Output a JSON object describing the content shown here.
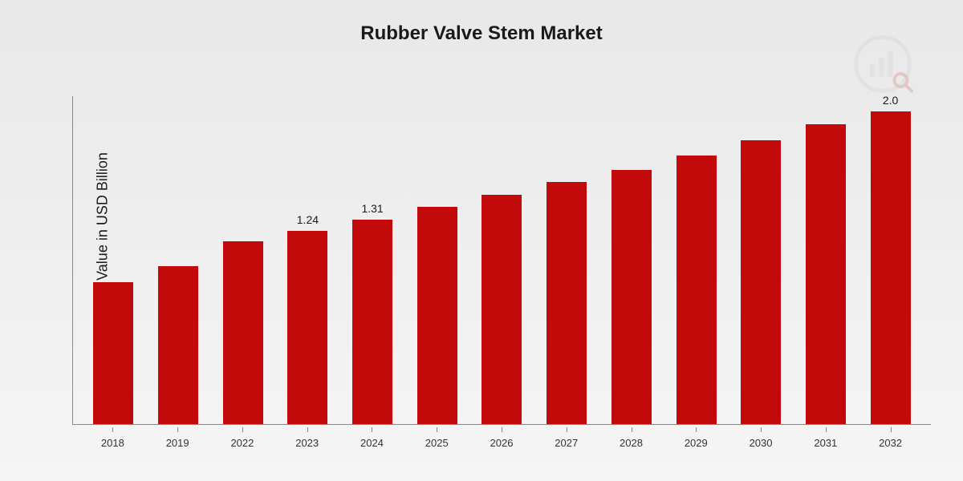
{
  "chart": {
    "type": "bar",
    "title": "Rubber Valve Stem Market",
    "y_axis_label": "Market Value in USD Billion",
    "categories": [
      "2018",
      "2019",
      "2022",
      "2023",
      "2024",
      "2025",
      "2026",
      "2027",
      "2028",
      "2029",
      "2030",
      "2031",
      "2032"
    ],
    "values": [
      0.91,
      1.01,
      1.17,
      1.24,
      1.31,
      1.39,
      1.47,
      1.55,
      1.63,
      1.72,
      1.82,
      1.92,
      2.0
    ],
    "value_labels": [
      "",
      "",
      "",
      "1.24",
      "1.31",
      "",
      "",
      "",
      "",
      "",
      "",
      "",
      "2.0"
    ],
    "bar_color": "#c20a0a",
    "ylim": [
      0,
      2.1
    ],
    "background_gradient": [
      "#e8e8e8",
      "#f5f5f5"
    ],
    "axis_color": "#888888",
    "text_color": "#1a1a1a",
    "title_fontsize": 24,
    "axis_label_fontsize": 18,
    "tick_fontsize": 13,
    "value_label_fontsize": 14,
    "bar_width_ratio": 0.62
  },
  "watermark": {
    "primary_color": "#b8b8b8",
    "accent_color": "#c20a0a",
    "opacity": 0.15
  }
}
